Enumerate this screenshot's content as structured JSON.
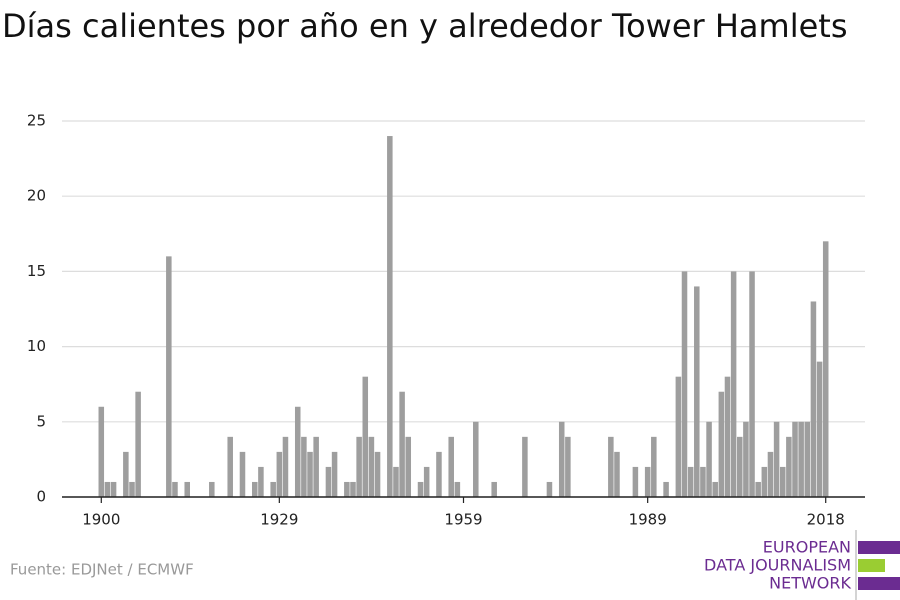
{
  "chart_data": {
    "type": "bar",
    "title": "Días calientes por año en y alrededor Tower Hamlets",
    "source": "Fuente: EDJNet / ECMWF",
    "logo": [
      "EUROPEAN",
      "DATA JOURNALISM",
      "NETWORK"
    ],
    "color": "#9e9e9e",
    "grid": true,
    "x": [
      1900,
      1901,
      1902,
      1903,
      1904,
      1905,
      1906,
      1907,
      1908,
      1909,
      1910,
      1911,
      1912,
      1913,
      1914,
      1915,
      1916,
      1917,
      1918,
      1919,
      1920,
      1921,
      1922,
      1923,
      1924,
      1925,
      1926,
      1927,
      1928,
      1929,
      1930,
      1931,
      1932,
      1933,
      1934,
      1935,
      1936,
      1937,
      1938,
      1939,
      1940,
      1941,
      1942,
      1943,
      1944,
      1945,
      1946,
      1947,
      1948,
      1949,
      1950,
      1951,
      1952,
      1953,
      1954,
      1955,
      1956,
      1957,
      1958,
      1959,
      1960,
      1961,
      1962,
      1963,
      1964,
      1965,
      1966,
      1967,
      1968,
      1969,
      1970,
      1971,
      1972,
      1973,
      1974,
      1975,
      1976,
      1977,
      1978,
      1979,
      1980,
      1981,
      1982,
      1983,
      1984,
      1985,
      1986,
      1987,
      1988,
      1989,
      1990,
      1991,
      1992,
      1993,
      1994,
      1995,
      1996,
      1997,
      1998,
      1999,
      2000,
      2001,
      2002,
      2003,
      2004,
      2005,
      2006,
      2007,
      2008,
      2009,
      2010,
      2011,
      2012,
      2013,
      2014,
      2015,
      2016,
      2017,
      2018
    ],
    "values": [
      6,
      1,
      1,
      0,
      3,
      1,
      7,
      0,
      0,
      0,
      0,
      16,
      1,
      0,
      1,
      0,
      0,
      0,
      1,
      0,
      0,
      4,
      0,
      3,
      0,
      1,
      2,
      0,
      1,
      3,
      4,
      0,
      6,
      4,
      3,
      4,
      0,
      2,
      3,
      0,
      1,
      1,
      4,
      8,
      4,
      3,
      0,
      24,
      2,
      7,
      4,
      0,
      1,
      2,
      0,
      3,
      0,
      4,
      1,
      0,
      0,
      5,
      0,
      0,
      1,
      0,
      0,
      0,
      0,
      4,
      0,
      0,
      0,
      1,
      0,
      5,
      4,
      0,
      0,
      0,
      0,
      0,
      0,
      4,
      3,
      0,
      0,
      2,
      0,
      2,
      4,
      0,
      1,
      0,
      8,
      15,
      2,
      14,
      2,
      5,
      1,
      7,
      8,
      15,
      4,
      5,
      15,
      1,
      2,
      3,
      5,
      2,
      4,
      5,
      5,
      5,
      13,
      9,
      17
    ],
    "xlim": [
      1893.6,
      2024.4
    ],
    "xticks": [
      1900,
      1929,
      1959,
      1989,
      2018
    ],
    "ylim": [
      0,
      25
    ],
    "yticks": [
      0,
      5,
      10,
      15,
      20,
      25
    ]
  }
}
